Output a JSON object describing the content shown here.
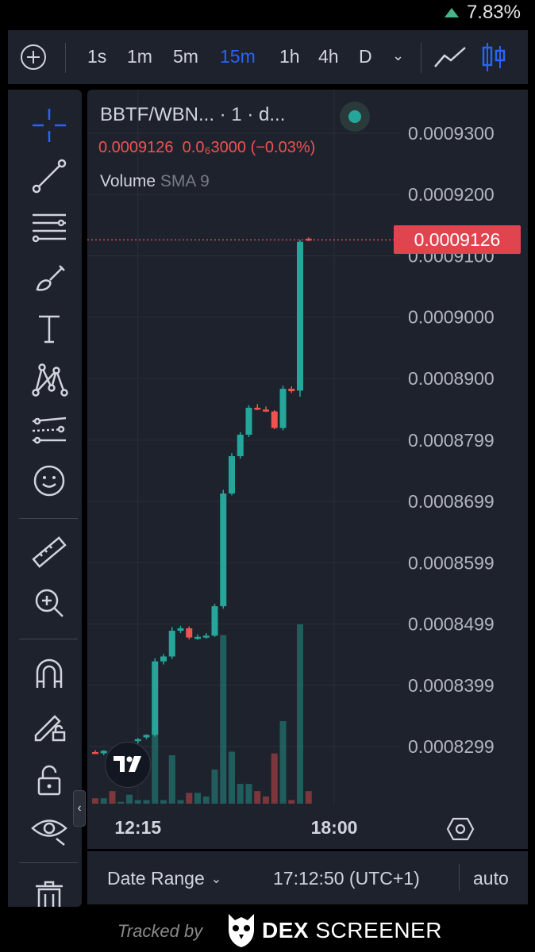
{
  "status_bar": {
    "change": "7.83%"
  },
  "toolbar": {
    "intervals": [
      "1s",
      "1m",
      "5m",
      "15m",
      "1h",
      "4h",
      "D"
    ],
    "active_interval": "15m"
  },
  "legend": {
    "title": "BBTF/WBN... · 1 · d...",
    "price": "0.0009126",
    "change": "0.0₆3000 (−0.03%)",
    "volume_label": "Volume",
    "volume_sma": "SMA 9"
  },
  "last_price_tag": "0.0009126",
  "bottom_bar": {
    "date_range": "Date Range",
    "clock": "17:12:50 (UTC+1)",
    "scale_mode": "auto"
  },
  "footer": {
    "tracked_by": "Tracked by",
    "brand_bold": "DEX",
    "brand_rest": "SCREENER"
  },
  "chart_data": {
    "type": "candlestick",
    "pair": "BBTF/WBNB",
    "up_color": "#26a69a",
    "down_color": "#ef5350",
    "y_ticks": [
      "0.0009300",
      "0.0009200",
      "0.0009100",
      "0.0009000",
      "0.0008900",
      "0.0008799",
      "0.0008699",
      "0.0008599",
      "0.0008499",
      "0.0008399",
      "0.0008299"
    ],
    "y_tick_values": [
      0.00093,
      0.00092,
      0.00091,
      0.0009,
      0.00089,
      0.0008799,
      0.0008699,
      0.0008599,
      0.0008499,
      0.0008399,
      0.0008299
    ],
    "x_ticks": [
      {
        "label": "12:15",
        "index": 5
      },
      {
        "label": "18:00",
        "index": 28
      }
    ],
    "last_price": 0.0009126,
    "candles": [
      {
        "o": 0.000829,
        "h": 0.0008293,
        "l": 0.0008287,
        "c": 0.0008288,
        "v": 0.03
      },
      {
        "o": 0.0008288,
        "h": 0.0008293,
        "l": 0.0008285,
        "c": 0.0008292,
        "v": 0.03
      },
      {
        "o": 0.0008292,
        "h": 0.0008296,
        "l": 0.0008289,
        "c": 0.000829,
        "v": 0.07
      },
      {
        "o": 0.0008295,
        "h": 0.00083,
        "l": 0.0008292,
        "c": 0.0008298,
        "v": 0.01
      },
      {
        "o": 0.0008301,
        "h": 0.0008306,
        "l": 0.0008298,
        "c": 0.0008304,
        "v": 0.05
      },
      {
        "o": 0.0008308,
        "h": 0.0008313,
        "l": 0.0008304,
        "c": 0.0008311,
        "v": 0.02
      },
      {
        "o": 0.0008314,
        "h": 0.0008319,
        "l": 0.0008311,
        "c": 0.0008318,
        "v": 0.02
      },
      {
        "o": 0.0008318,
        "h": 0.0008443,
        "l": 0.0008315,
        "c": 0.0008438,
        "v": 0.46
      },
      {
        "o": 0.0008438,
        "h": 0.000845,
        "l": 0.0008433,
        "c": 0.0008446,
        "v": 0.02
      },
      {
        "o": 0.0008446,
        "h": 0.0008494,
        "l": 0.0008442,
        "c": 0.0008488,
        "v": 0.27
      },
      {
        "o": 0.0008488,
        "h": 0.0008496,
        "l": 0.0008484,
        "c": 0.0008492,
        "v": 0.02
      },
      {
        "o": 0.0008492,
        "h": 0.0008495,
        "l": 0.0008474,
        "c": 0.0008477,
        "v": 0.06
      },
      {
        "o": 0.0008477,
        "h": 0.0008482,
        "l": 0.0008473,
        "c": 0.0008478,
        "v": 0.06
      },
      {
        "o": 0.0008478,
        "h": 0.0008484,
        "l": 0.0008475,
        "c": 0.000848,
        "v": 0.04
      },
      {
        "o": 0.000848,
        "h": 0.0008532,
        "l": 0.0008478,
        "c": 0.0008528,
        "v": 0.19
      },
      {
        "o": 0.0008528,
        "h": 0.0008718,
        "l": 0.0008524,
        "c": 0.0008712,
        "v": 0.94
      },
      {
        "o": 0.0008712,
        "h": 0.0008778,
        "l": 0.0008709,
        "c": 0.0008773,
        "v": 0.29
      },
      {
        "o": 0.0008773,
        "h": 0.0008812,
        "l": 0.0008769,
        "c": 0.0008808,
        "v": 0.11
      },
      {
        "o": 0.0008808,
        "h": 0.0008856,
        "l": 0.0008804,
        "c": 0.0008852,
        "v": 0.11
      },
      {
        "o": 0.0008852,
        "h": 0.0008858,
        "l": 0.0008848,
        "c": 0.000885,
        "v": 0.07
      },
      {
        "o": 0.0008849,
        "h": 0.0008854,
        "l": 0.0008845,
        "c": 0.0008846,
        "v": 0.04
      },
      {
        "o": 0.0008846,
        "h": 0.0008848,
        "l": 0.0008817,
        "c": 0.0008819,
        "v": 0.28
      },
      {
        "o": 0.0008819,
        "h": 0.0008888,
        "l": 0.0008815,
        "c": 0.0008883,
        "v": 0.46
      },
      {
        "o": 0.0008883,
        "h": 0.0008887,
        "l": 0.0008876,
        "c": 0.0008879,
        "v": 0.02
      },
      {
        "o": 0.000888,
        "h": 0.0009126,
        "l": 0.000887,
        "c": 0.0009123,
        "v": 1.0
      },
      {
        "o": 0.0009128,
        "h": 0.000913,
        "l": 0.0009124,
        "c": 0.0009126,
        "v": 0.07
      }
    ]
  }
}
